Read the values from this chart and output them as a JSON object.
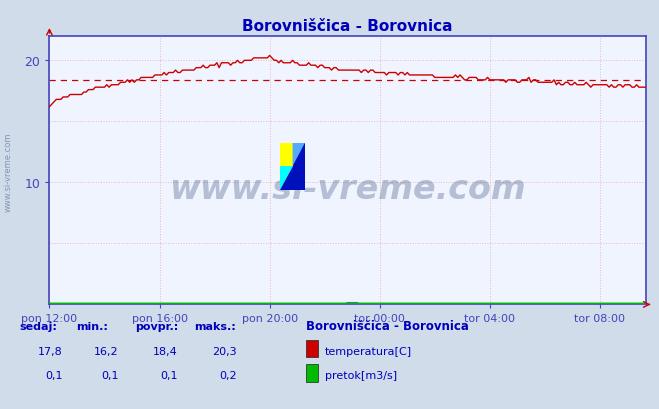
{
  "title": "Borovniščica - Borovnica",
  "bg_color": "#d0dcea",
  "plot_bg_color": "#f0f4ff",
  "line_color_temp": "#cc0000",
  "line_color_flow": "#00bb00",
  "grid_color": "#e8b8b8",
  "axis_color": "#4444bb",
  "text_color": "#0000bb",
  "avg_line_color": "#cc0000",
  "ylim": [
    0,
    22
  ],
  "ytick_vals": [
    10,
    20
  ],
  "avg_temp": 18.4,
  "n_points": 261,
  "tick_positions": [
    0,
    48,
    96,
    144,
    192,
    240
  ],
  "xlabel_ticks": [
    "pon 12:00",
    "pon 16:00",
    "pon 20:00",
    "tor 00:00",
    "tor 04:00",
    "tor 08:00"
  ],
  "sedaj": "17,8",
  "min_val": "16,2",
  "povpr": "18,4",
  "maks": "20,3",
  "sedaj_flow": "0,1",
  "min_flow": "0,1",
  "povpr_flow": "0,1",
  "maks_flow": "0,2",
  "station_label": "Borovniščica - Borovnica",
  "legend_temp": "temperatura[C]",
  "legend_flow": "pretok[m3/s]",
  "watermark": "www.si-vreme.com",
  "sidebar_text": "www.si-vreme.com",
  "headers": [
    "sedaj:",
    "min.:",
    "povpr.:",
    "maks.:"
  ]
}
